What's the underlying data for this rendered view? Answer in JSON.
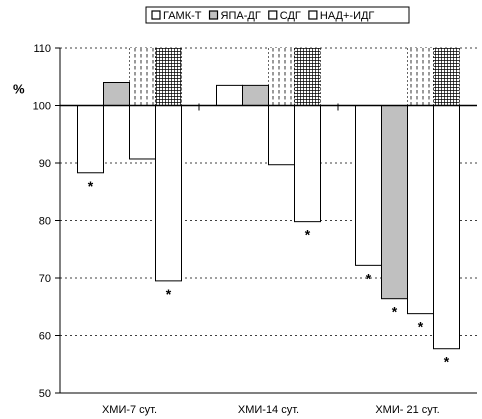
{
  "chart_data": {
    "type": "bar",
    "title": "",
    "xlabel": "",
    "ylabel": "%",
    "ylim": [
      50,
      110
    ],
    "baseline": 100,
    "yticks": [
      50,
      60,
      70,
      80,
      90,
      100,
      110
    ],
    "grid": "horizontal dashed",
    "legend_position": "top",
    "categories": [
      "ХМИ-7 сут.",
      "ХМИ-14 сут.",
      "ХМИ- 21 сут."
    ],
    "series": [
      {
        "name": "ГАМК-Т",
        "values": [
          88.3,
          103.5,
          72.2
        ],
        "marks": [
          "*",
          "",
          "*"
        ],
        "fill": "white",
        "color": "#ffffff"
      },
      {
        "name": "ЯПА-ДГ",
        "values": [
          104.0,
          103.5,
          66.4
        ],
        "marks": [
          "",
          "",
          "*"
        ],
        "fill": "gray",
        "color": "#c0c0c0"
      },
      {
        "name": "СДГ",
        "values": [
          90.7,
          89.7,
          63.8
        ],
        "marks": [
          "",
          "",
          "*"
        ],
        "fill": "dashed",
        "color": "#ffffff"
      },
      {
        "name": "НАД+-ИДГ",
        "values": [
          69.5,
          79.8,
          57.7
        ],
        "marks": [
          "*",
          "*",
          "*"
        ],
        "fill": "grid",
        "color": "#ffffff"
      }
    ],
    "hatched_ceiling": 110,
    "hatched_floors": {
      "СДГ": [
        100,
        89.7,
        73.0
      ],
      "НАД+-ИДГ": [
        79.0,
        89.5,
        67.0
      ]
    }
  }
}
